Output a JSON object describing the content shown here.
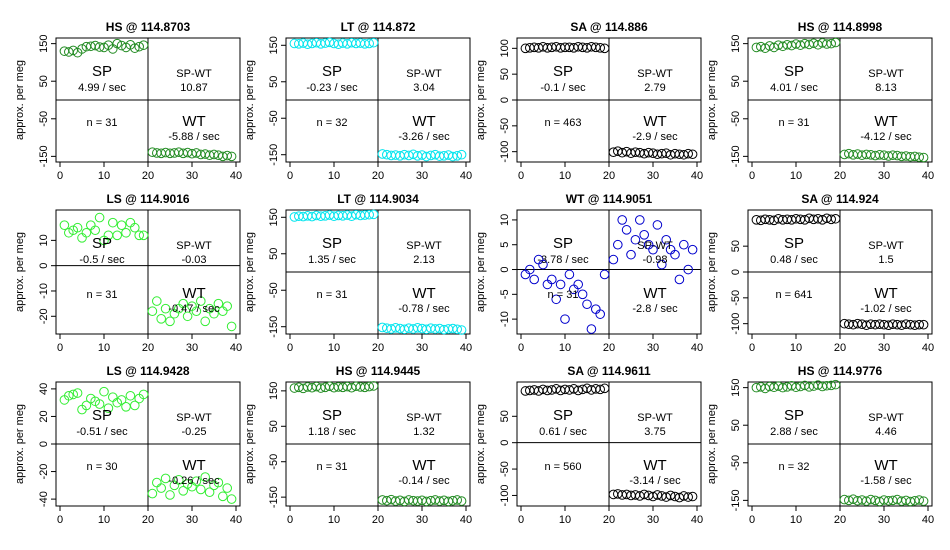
{
  "chart_data": {
    "type": "scatter",
    "ylabel": "approx. per meg",
    "xlim": [
      0,
      40
    ],
    "xticks": [
      0,
      10,
      20,
      30,
      40
    ],
    "quadrant_labels": {
      "sp": "SP",
      "wt": "WT",
      "diff": "SP-WT"
    },
    "panels": [
      {
        "title": "HS @ 114.8703",
        "color": "#228b22",
        "ylim": [
          -165,
          165
        ],
        "yticks": [
          150,
          50,
          -50,
          -150
        ],
        "sp_slope": "4.99 / sec",
        "diff": "10.87",
        "wt_slope": "-5.88 / sec",
        "n": "n = 31",
        "sp_x": [
          1,
          2,
          3,
          4,
          5,
          6,
          7,
          8,
          9,
          10,
          11,
          12,
          13,
          14,
          15,
          16,
          17,
          18,
          19
        ],
        "sp_y": [
          130,
          128,
          132,
          126,
          136,
          142,
          143,
          145,
          141,
          140,
          146,
          136,
          150,
          145,
          140,
          147,
          138,
          142,
          146
        ],
        "wt_x": [
          21,
          22,
          23,
          24,
          25,
          26,
          27,
          28,
          29,
          30,
          31,
          32,
          33,
          34,
          35,
          36,
          37,
          38,
          39
        ],
        "wt_y": [
          -139,
          -141,
          -142,
          -140,
          -142,
          -141,
          -139,
          -142,
          -140,
          -143,
          -141,
          -145,
          -144,
          -147,
          -145,
          -147,
          -150,
          -148,
          -150
        ]
      },
      {
        "title": "LT @ 114.872",
        "color": "#00e5ee",
        "ylim": [
          -170,
          170
        ],
        "yticks": [
          150,
          50,
          -50,
          -150
        ],
        "sp_slope": "-0.23 / sec",
        "diff": "3.04",
        "wt_slope": "-3.26 / sec",
        "n": "n = 32",
        "sp_x": [
          1,
          2,
          3,
          4,
          5,
          6,
          7,
          8,
          9,
          10,
          11,
          12,
          13,
          14,
          15,
          16,
          17,
          18,
          19
        ],
        "sp_y": [
          155,
          154,
          156,
          153,
          155,
          157,
          154,
          156,
          158,
          155,
          153,
          156,
          154,
          157,
          155,
          156,
          154,
          155,
          157
        ],
        "wt_x": [
          21,
          22,
          23,
          24,
          25,
          26,
          27,
          28,
          29,
          30,
          31,
          32,
          33,
          34,
          35,
          36,
          37,
          38,
          39
        ],
        "wt_y": [
          -148,
          -150,
          -152,
          -151,
          -153,
          -150,
          -152,
          -149,
          -153,
          -151,
          -155,
          -152,
          -150,
          -154,
          -153,
          -151,
          -155,
          -153,
          -150
        ]
      },
      {
        "title": "SA @ 114.886",
        "color": "#000000",
        "ylim": [
          -120,
          120
        ],
        "yticks": [
          100,
          50,
          0,
          -50,
          -100
        ],
        "sp_slope": "-0.1 / sec",
        "diff": "2.79",
        "wt_slope": "-2.9 / sec",
        "n": "n = 463",
        "sp_x": [
          1,
          2,
          3,
          4,
          5,
          6,
          7,
          8,
          9,
          10,
          11,
          12,
          13,
          14,
          15,
          16,
          17,
          18,
          19
        ],
        "sp_y": [
          100,
          101,
          102,
          101,
          103,
          101,
          102,
          103,
          101,
          102,
          102,
          101,
          103,
          102,
          101,
          103,
          102,
          101,
          100
        ],
        "wt_x": [
          21,
          22,
          23,
          24,
          25,
          26,
          27,
          28,
          29,
          30,
          31,
          32,
          33,
          34,
          35,
          36,
          37,
          38,
          39
        ],
        "wt_y": [
          -101,
          -99,
          -102,
          -100,
          -103,
          -101,
          -102,
          -104,
          -102,
          -103,
          -105,
          -104,
          -103,
          -106,
          -104,
          -105,
          -106,
          -104,
          -105
        ]
      },
      {
        "title": "HS @ 114.8998",
        "color": "#228b22",
        "ylim": [
          -165,
          165
        ],
        "yticks": [
          150,
          50,
          -50,
          -150
        ],
        "sp_slope": "4.01 / sec",
        "diff": "8.13",
        "wt_slope": "-4.12 / sec",
        "n": "n = 31",
        "sp_x": [
          1,
          2,
          3,
          4,
          5,
          6,
          7,
          8,
          9,
          10,
          11,
          12,
          13,
          14,
          15,
          16,
          17,
          18,
          19
        ],
        "sp_y": [
          140,
          142,
          138,
          144,
          140,
          146,
          143,
          147,
          145,
          149,
          146,
          150,
          148,
          151,
          147,
          152,
          149,
          150,
          153
        ],
        "wt_x": [
          21,
          22,
          23,
          24,
          25,
          26,
          27,
          28,
          29,
          30,
          31,
          32,
          33,
          34,
          35,
          36,
          37,
          38,
          39
        ],
        "wt_y": [
          -145,
          -143,
          -146,
          -144,
          -147,
          -145,
          -146,
          -148,
          -146,
          -147,
          -149,
          -147,
          -148,
          -150,
          -149,
          -151,
          -150,
          -152,
          -153
        ]
      },
      {
        "title": "LS @ 114.9016",
        "color": "#33ee33",
        "ylim": [
          -27,
          22
        ],
        "yticks": [
          10,
          0,
          -10,
          -20
        ],
        "sp_slope": "-0.5 / sec",
        "diff": "-0.03",
        "wt_slope": "-0.47 / sec",
        "n": "n = 31",
        "sp_x": [
          1,
          2,
          3,
          4,
          5,
          6,
          7,
          8,
          9,
          10,
          11,
          12,
          13,
          14,
          15,
          16,
          17,
          18,
          19
        ],
        "sp_y": [
          16,
          13,
          14,
          15,
          11,
          13,
          16,
          14,
          19,
          10,
          12,
          17,
          12,
          16,
          13,
          17,
          15,
          12,
          12
        ],
        "wt_x": [
          21,
          22,
          23,
          24,
          25,
          26,
          27,
          28,
          29,
          30,
          31,
          32,
          33,
          34,
          35,
          36,
          37,
          38,
          39
        ],
        "wt_y": [
          -18,
          -14,
          -21,
          -17,
          -22,
          -19,
          -17,
          -15,
          -20,
          -16,
          -18,
          -14,
          -22,
          -17,
          -19,
          -15,
          -18,
          -16,
          -24
        ]
      },
      {
        "title": "LT @ 114.9034",
        "color": "#00e5ee",
        "ylim": [
          -170,
          170
        ],
        "yticks": [
          150,
          50,
          -50,
          -150
        ],
        "sp_slope": "1.35 / sec",
        "diff": "2.13",
        "wt_slope": "-0.78 / sec",
        "n": "n = 31",
        "sp_x": [
          1,
          2,
          3,
          4,
          5,
          6,
          7,
          8,
          9,
          10,
          11,
          12,
          13,
          14,
          15,
          16,
          17,
          18,
          19
        ],
        "sp_y": [
          151,
          153,
          152,
          154,
          152,
          155,
          153,
          154,
          156,
          153,
          155,
          154,
          156,
          153,
          157,
          155,
          156,
          157,
          158
        ],
        "wt_x": [
          21,
          22,
          23,
          24,
          25,
          26,
          27,
          28,
          29,
          30,
          31,
          32,
          33,
          34,
          35,
          36,
          37,
          38,
          39
        ],
        "wt_y": [
          -152,
          -154,
          -156,
          -153,
          -155,
          -157,
          -154,
          -156,
          -153,
          -155,
          -157,
          -154,
          -156,
          -155,
          -158,
          -156,
          -155,
          -157,
          -159
        ]
      },
      {
        "title": "WT @ 114.9051",
        "color": "#0000cd",
        "ylim": [
          -13,
          12
        ],
        "yticks": [
          10,
          5,
          0,
          -5,
          -10
        ],
        "sp_slope": "-3.78 / sec",
        "diff": "-0.98",
        "wt_slope": "-2.8 / sec",
        "n": "n = 31",
        "sp_x": [
          1,
          2,
          3,
          4,
          5,
          6,
          7,
          8,
          9,
          10,
          11,
          12,
          13,
          14,
          15,
          16,
          17,
          18,
          19
        ],
        "sp_y": [
          -1,
          0,
          -2,
          2,
          1,
          -3,
          -2,
          -6,
          -3,
          -10,
          -1,
          -4,
          -3,
          -5,
          -7,
          -12,
          -8,
          -9,
          -1
        ],
        "wt_x": [
          21,
          22,
          23,
          24,
          25,
          26,
          27,
          28,
          29,
          30,
          31,
          32,
          33,
          34,
          35,
          36,
          37,
          38,
          39
        ],
        "wt_y": [
          2,
          5,
          10,
          8,
          3,
          6,
          10,
          7,
          5,
          4,
          9,
          1,
          6,
          4,
          3,
          -2,
          5,
          0,
          4
        ]
      },
      {
        "title": "SA @ 114.924",
        "color": "#000000",
        "ylim": [
          -120,
          120
        ],
        "yticks": [
          50,
          0,
          -50,
          -100
        ],
        "sp_slope": "0.48 / sec",
        "diff": "1.5",
        "wt_slope": "-1.02 / sec",
        "n": "n = 641",
        "sp_x": [
          1,
          2,
          3,
          4,
          5,
          6,
          7,
          8,
          9,
          10,
          11,
          12,
          13,
          14,
          15,
          16,
          17,
          18,
          19
        ],
        "sp_y": [
          101,
          100,
          102,
          101,
          100,
          103,
          101,
          102,
          101,
          103,
          102,
          101,
          104,
          102,
          103,
          101,
          104,
          102,
          103
        ],
        "wt_x": [
          21,
          22,
          23,
          24,
          25,
          26,
          27,
          28,
          29,
          30,
          31,
          32,
          33,
          34,
          35,
          36,
          37,
          38,
          39
        ],
        "wt_y": [
          -100,
          -101,
          -102,
          -100,
          -101,
          -103,
          -101,
          -102,
          -101,
          -102,
          -103,
          -101,
          -102,
          -103,
          -101,
          -102,
          -103,
          -102,
          -102
        ]
      },
      {
        "title": "LS @ 114.9428",
        "color": "#33ee33",
        "ylim": [
          -45,
          45
        ],
        "yticks": [
          40,
          20,
          0,
          -20,
          -40
        ],
        "sp_slope": "-0.51 / sec",
        "diff": "-0.25",
        "wt_slope": "-0.26 / sec",
        "n": "n = 30",
        "sp_x": [
          1,
          2,
          3,
          4,
          5,
          6,
          7,
          8,
          9,
          10,
          11,
          12,
          13,
          14,
          15,
          16,
          17,
          18,
          19
        ],
        "sp_y": [
          32,
          35,
          36,
          37,
          25,
          28,
          33,
          31,
          29,
          38,
          26,
          34,
          30,
          32,
          27,
          35,
          28,
          33,
          36
        ],
        "wt_x": [
          21,
          22,
          23,
          24,
          25,
          26,
          27,
          28,
          29,
          30,
          31,
          32,
          33,
          34,
          35,
          36,
          37,
          38,
          39
        ],
        "wt_y": [
          -36,
          -28,
          -32,
          -25,
          -37,
          -30,
          -26,
          -34,
          -29,
          -31,
          -27,
          -33,
          -24,
          -35,
          -30,
          -28,
          -38,
          -32,
          -40
        ]
      },
      {
        "title": "HS @ 114.9445",
        "color": "#228b22",
        "ylim": [
          -175,
          175
        ],
        "yticks": [
          150,
          50,
          -50,
          -150
        ],
        "sp_slope": "1.18 / sec",
        "diff": "1.32",
        "wt_slope": "-0.14 / sec",
        "n": "n = 31",
        "sp_x": [
          1,
          2,
          3,
          4,
          5,
          6,
          7,
          8,
          9,
          10,
          11,
          12,
          13,
          14,
          15,
          16,
          17,
          18,
          19
        ],
        "sp_y": [
          158,
          160,
          157,
          161,
          159,
          162,
          158,
          160,
          163,
          159,
          161,
          160,
          162,
          159,
          163,
          161,
          160,
          162,
          164
        ],
        "wt_x": [
          21,
          22,
          23,
          24,
          25,
          26,
          27,
          28,
          29,
          30,
          31,
          32,
          33,
          34,
          35,
          36,
          37,
          38,
          39
        ],
        "wt_y": [
          -158,
          -160,
          -157,
          -161,
          -159,
          -162,
          -158,
          -160,
          -161,
          -159,
          -162,
          -160,
          -158,
          -161,
          -159,
          -162,
          -160,
          -158,
          -161
        ]
      },
      {
        "title": "SA @ 114.9611",
        "color": "#000000",
        "ylim": [
          -120,
          115
        ],
        "yticks": [
          50,
          0,
          -50,
          -100
        ],
        "sp_slope": "0.61 / sec",
        "diff": "3.75",
        "wt_slope": "-3.14 / sec",
        "n": "n = 560",
        "sp_x": [
          1,
          2,
          3,
          4,
          5,
          6,
          7,
          8,
          9,
          10,
          11,
          12,
          13,
          14,
          15,
          16,
          17,
          18,
          19
        ],
        "sp_y": [
          98,
          99,
          100,
          98,
          101,
          99,
          100,
          102,
          99,
          101,
          100,
          102,
          99,
          101,
          103,
          100,
          102,
          101,
          103
        ],
        "wt_x": [
          21,
          22,
          23,
          24,
          25,
          26,
          27,
          28,
          29,
          30,
          31,
          32,
          33,
          34,
          35,
          36,
          37,
          38,
          39
        ],
        "wt_y": [
          -98,
          -97,
          -99,
          -98,
          -100,
          -99,
          -101,
          -98,
          -100,
          -102,
          -99,
          -101,
          -103,
          -100,
          -102,
          -104,
          -101,
          -103,
          -102
        ]
      },
      {
        "title": "HS @ 114.9776",
        "color": "#228b22",
        "ylim": [
          -165,
          165
        ],
        "yticks": [
          150,
          50,
          -50,
          -150
        ],
        "sp_slope": "2.88 / sec",
        "diff": "4.46",
        "wt_slope": "-1.58 / sec",
        "n": "n = 32",
        "sp_x": [
          1,
          2,
          3,
          4,
          5,
          6,
          7,
          8,
          9,
          10,
          11,
          12,
          13,
          14,
          15,
          16,
          17,
          18,
          19
        ],
        "sp_y": [
          150,
          152,
          148,
          153,
          151,
          154,
          150,
          152,
          155,
          151,
          153,
          156,
          152,
          154,
          157,
          153,
          155,
          156,
          158
        ],
        "wt_x": [
          21,
          22,
          23,
          24,
          25,
          26,
          27,
          28,
          29,
          30,
          31,
          32,
          33,
          34,
          35,
          36,
          37,
          38,
          39
        ],
        "wt_y": [
          -148,
          -150,
          -147,
          -151,
          -149,
          -152,
          -148,
          -150,
          -153,
          -149,
          -151,
          -150,
          -148,
          -152,
          -150,
          -153,
          -151,
          -149,
          -152
        ]
      }
    ]
  }
}
